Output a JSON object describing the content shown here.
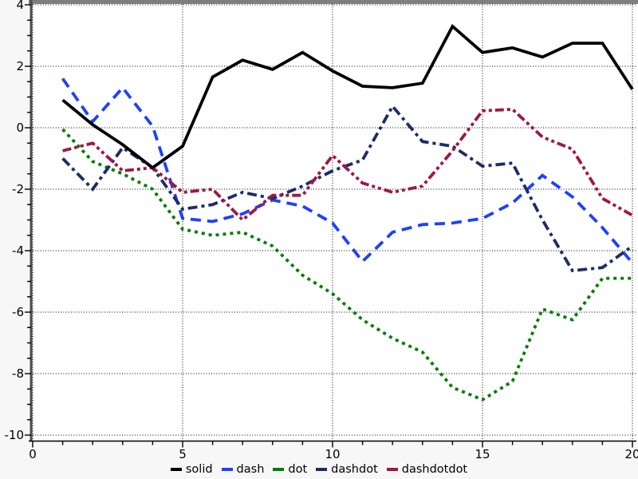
{
  "chart_data": {
    "type": "line",
    "title": "",
    "xlabel": "",
    "ylabel": "",
    "grid": true,
    "legend_position": "bottom-center",
    "xlim": [
      -0.1,
      20.15
    ],
    "ylim": [
      -10.2,
      4.15
    ],
    "x_ticks": [
      0,
      5,
      10,
      15,
      20
    ],
    "x_tick_labels": [
      "0",
      "5",
      "10",
      "15",
      "20"
    ],
    "x_minor_step": 1,
    "y_ticks": [
      4,
      2,
      0,
      -2,
      -4,
      -6,
      -8,
      -10
    ],
    "y_tick_labels": [
      "4",
      "2",
      "0",
      "-2",
      "-4",
      "-6",
      "-8",
      "-10"
    ],
    "y_minor_step": 0.5,
    "x": [
      1,
      2,
      3,
      4,
      5,
      6,
      7,
      8,
      9,
      10,
      11,
      12,
      13,
      14,
      15,
      16,
      17,
      18,
      19,
      20
    ],
    "series": [
      {
        "name": "dot",
        "color": "#077c07",
        "line_style": "dot",
        "values": [
          -0.05,
          -1.1,
          -1.5,
          -2.0,
          -3.3,
          -3.5,
          -3.4,
          -3.85,
          -4.8,
          -5.4,
          -6.25,
          -6.85,
          -7.3,
          -8.45,
          -8.85,
          -8.25,
          -5.9,
          -6.25,
          -4.9,
          -4.9
        ]
      },
      {
        "name": "dash",
        "color": "#1e40ff",
        "line_style": "dash",
        "values": [
          1.6,
          0.2,
          1.3,
          0.05,
          -2.95,
          -3.05,
          -2.8,
          -2.35,
          -2.55,
          -3.1,
          -4.35,
          -3.4,
          -3.15,
          -3.1,
          -2.95,
          -2.45,
          -1.55,
          -2.25,
          -3.25,
          -4.4
        ]
      },
      {
        "name": "dashdot",
        "color": "#1d2b67",
        "line_style": "dashdot",
        "values": [
          -1.0,
          -2.0,
          -0.65,
          -1.3,
          -2.65,
          -2.5,
          -2.1,
          -2.3,
          -1.9,
          -1.4,
          -1.05,
          0.7,
          -0.45,
          -0.6,
          -1.25,
          -1.15,
          -3.0,
          -4.65,
          -4.55,
          -3.85
        ]
      },
      {
        "name": "dashdotdot",
        "color": "#9e1745",
        "line_style": "dashdotdot",
        "values": [
          -0.75,
          -0.5,
          -1.4,
          -1.3,
          -2.1,
          -2.0,
          -3.0,
          -2.2,
          -2.2,
          -0.9,
          -1.8,
          -2.1,
          -1.9,
          -0.75,
          0.55,
          0.6,
          -0.3,
          -0.7,
          -2.3,
          -2.85
        ]
      },
      {
        "name": "solid",
        "color": "#000000",
        "line_style": "solid",
        "values": [
          0.9,
          0.1,
          -0.55,
          -1.3,
          -0.6,
          1.65,
          2.2,
          1.9,
          2.45,
          1.85,
          1.35,
          1.3,
          1.45,
          3.3,
          2.45,
          2.6,
          2.3,
          2.75,
          2.75,
          1.25
        ]
      }
    ],
    "legend_order": [
      "solid",
      "dash",
      "dot",
      "dashdot",
      "dashdotdot"
    ],
    "frame_colors": {
      "top_bar": "#7f7f7f",
      "left_spine": "#4d4d4d",
      "bottom_axis": "#000000",
      "plot_bg": "#ffffff",
      "margin_bg": "#f7f7f7"
    }
  }
}
